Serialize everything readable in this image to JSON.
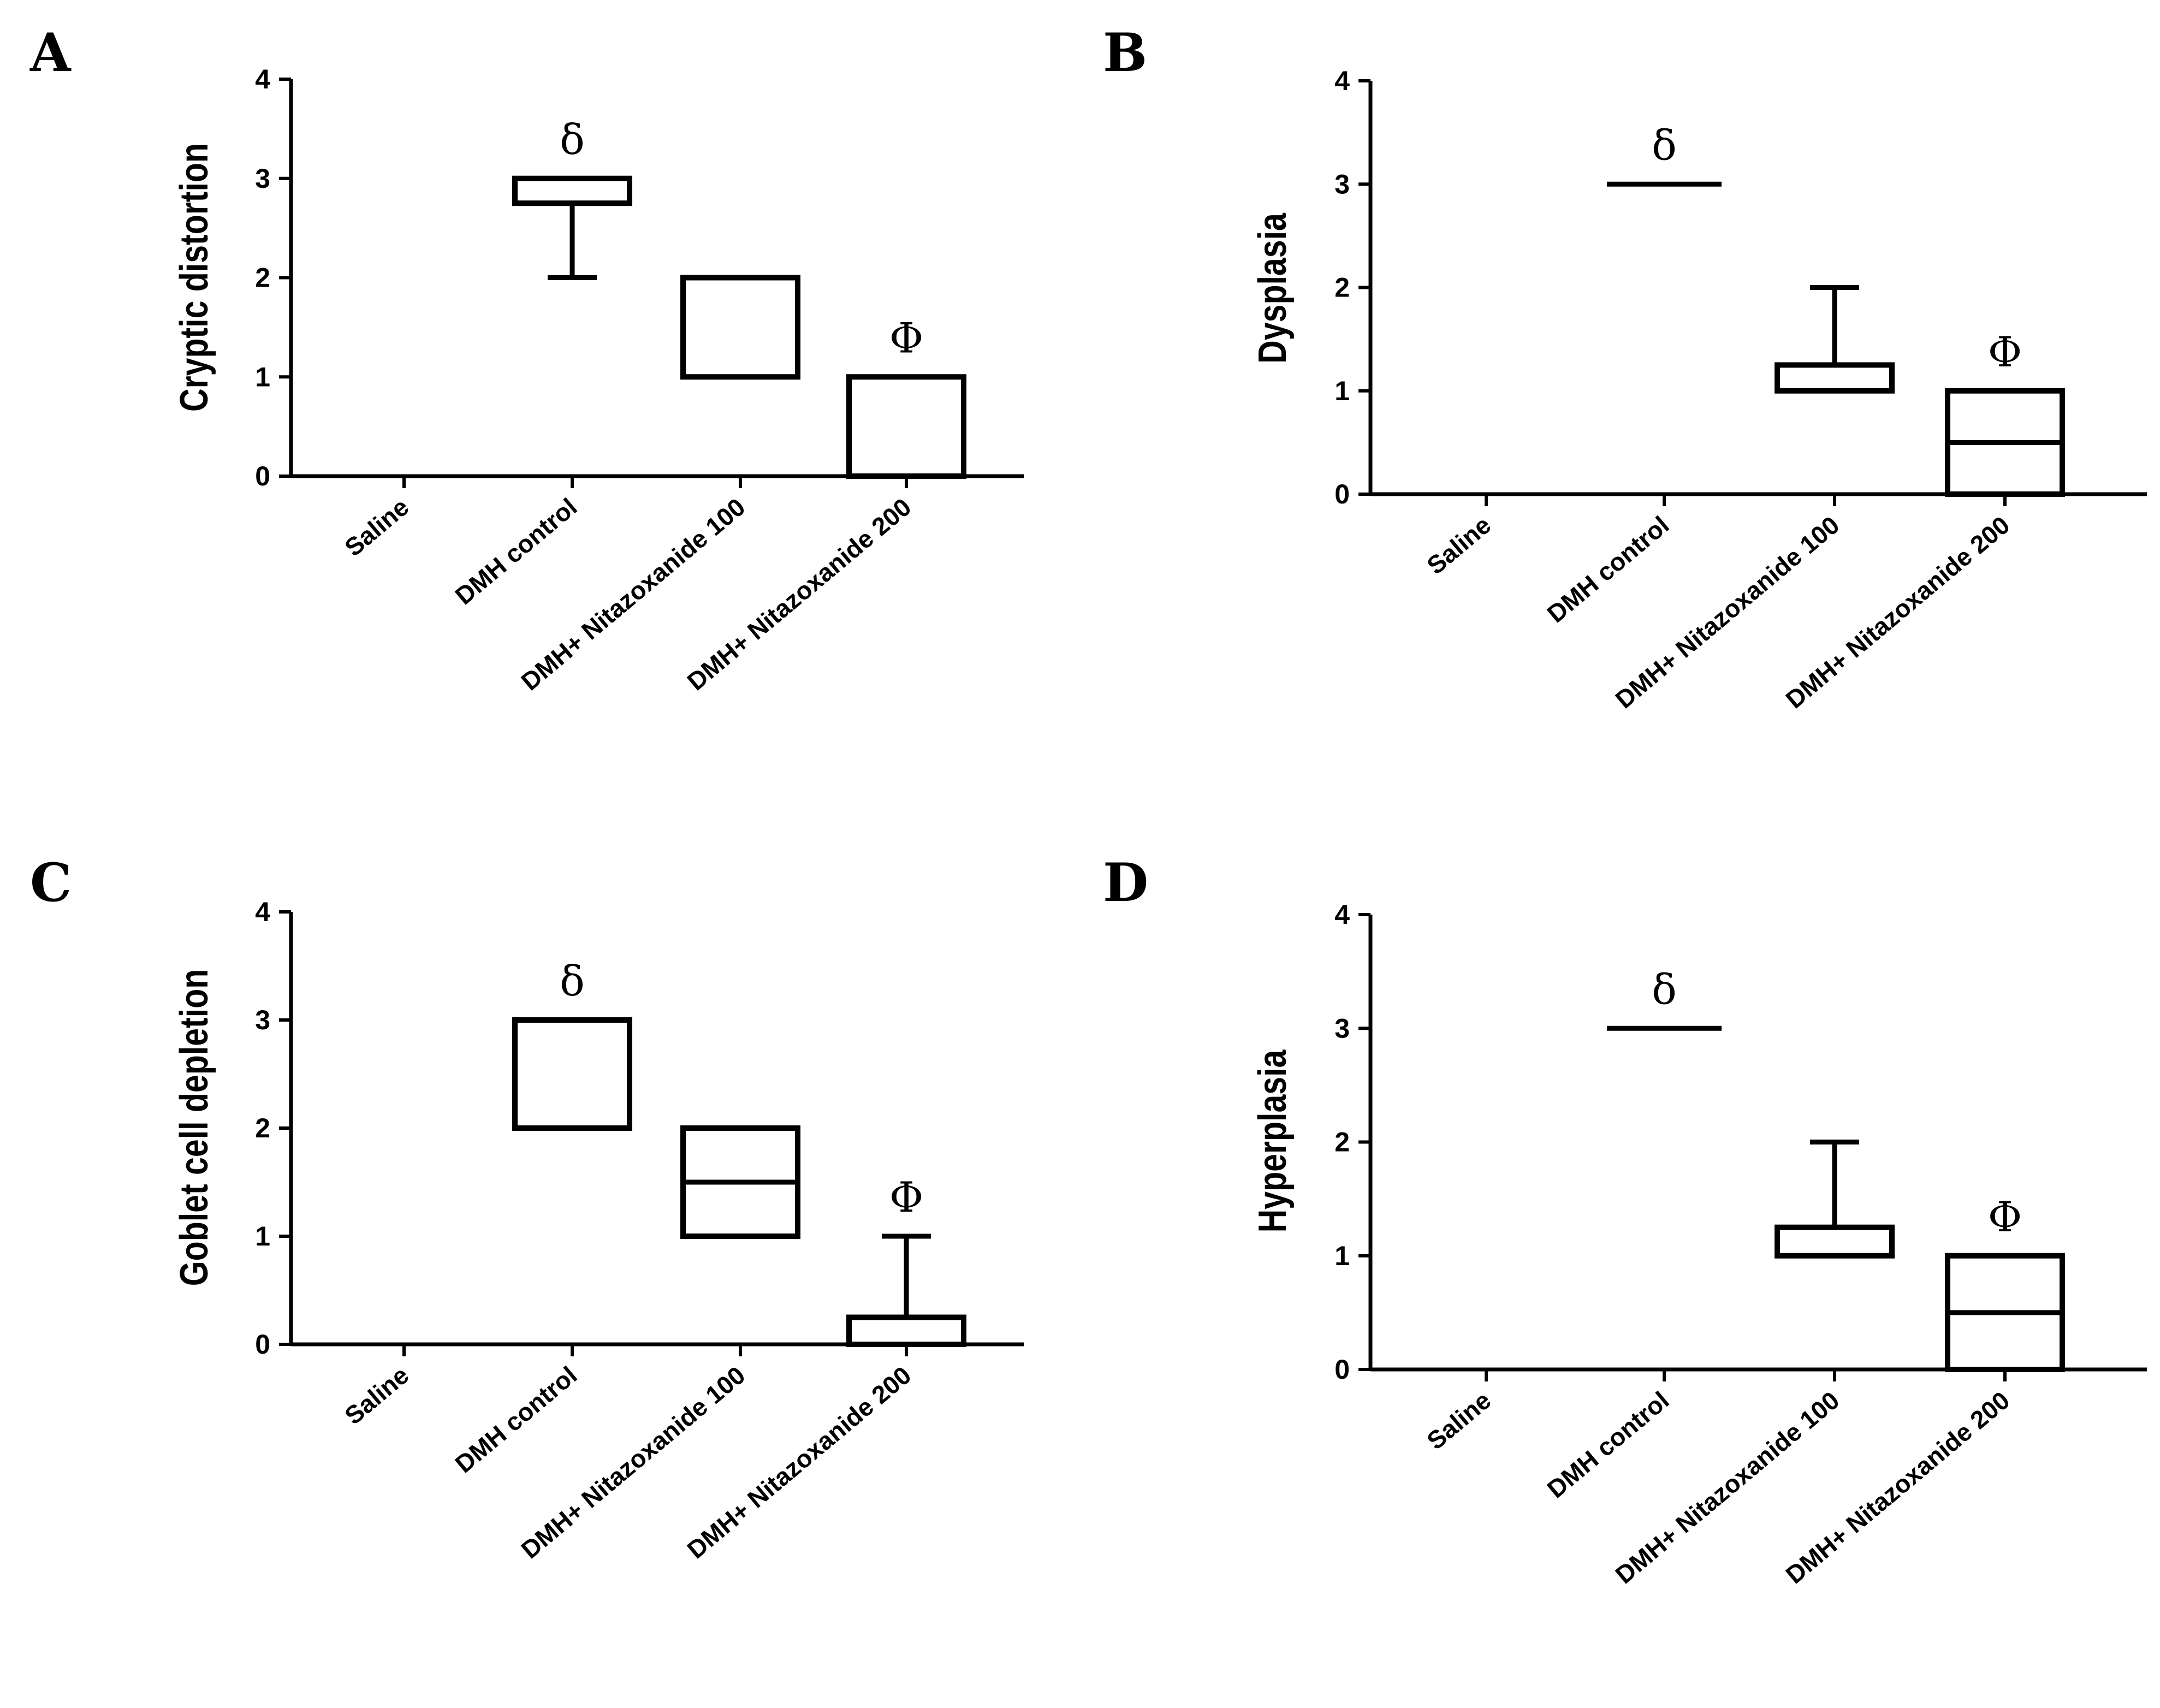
{
  "chart_data": [
    {
      "type": "box",
      "panel": "A",
      "ylabel": "Cryptic distortion",
      "ylim": [
        0,
        4
      ],
      "yticks": [
        "0",
        "1",
        "2",
        "3",
        "4"
      ],
      "categories": [
        "Saline",
        "DMH control",
        "DMH+ Nitazoxanide 100",
        "DMH+ Nitazoxanide 200"
      ],
      "boxes": [
        {
          "min": 0,
          "q1": 0,
          "median": 0,
          "q3": 0,
          "max": 0
        },
        {
          "min": 2,
          "q1": 2.75,
          "median": 3,
          "q3": 3,
          "max": 3
        },
        {
          "min": 1,
          "q1": 1,
          "median": 1,
          "q3": 2,
          "max": 2
        },
        {
          "min": 0,
          "q1": 0,
          "median": 1,
          "q3": 1,
          "max": 1
        }
      ],
      "significance": [
        "",
        "δ",
        "",
        "Φ"
      ]
    },
    {
      "type": "box",
      "panel": "B",
      "ylabel": "Dysplasia",
      "ylim": [
        0,
        4
      ],
      "yticks": [
        "0",
        "1",
        "2",
        "3",
        "4"
      ],
      "categories": [
        "Saline",
        "DMH control",
        "DMH+ Nitazoxanide 100",
        "DMH+ Nitazoxanide 200"
      ],
      "boxes": [
        {
          "min": 0,
          "q1": 0,
          "median": 0,
          "q3": 0,
          "max": 0
        },
        {
          "min": 3,
          "q1": 3,
          "median": 3,
          "q3": 3,
          "max": 3
        },
        {
          "min": 1,
          "q1": 1,
          "median": 1,
          "q3": 1.25,
          "max": 2
        },
        {
          "min": 0,
          "q1": 0,
          "median": 0.5,
          "q3": 1,
          "max": 1
        }
      ],
      "significance": [
        "",
        "δ",
        "",
        "Φ"
      ]
    },
    {
      "type": "box",
      "panel": "C",
      "ylabel": "Goblet cell depletion",
      "ylim": [
        0,
        4
      ],
      "yticks": [
        "0",
        "1",
        "2",
        "3",
        "4"
      ],
      "categories": [
        "Saline",
        "DMH control",
        "DMH+ Nitazoxanide 100",
        "DMH+ Nitazoxanide 200"
      ],
      "boxes": [
        {
          "min": 0,
          "q1": 0,
          "median": 0,
          "q3": 0,
          "max": 0
        },
        {
          "min": 2,
          "q1": 2,
          "median": 2,
          "q3": 3,
          "max": 3
        },
        {
          "min": 1,
          "q1": 1,
          "median": 1.5,
          "q3": 2,
          "max": 2
        },
        {
          "min": 0,
          "q1": 0,
          "median": 0,
          "q3": 0.25,
          "max": 1
        }
      ],
      "significance": [
        "",
        "δ",
        "",
        "Φ"
      ]
    },
    {
      "type": "box",
      "panel": "D",
      "ylabel": "Hyperplasia",
      "ylim": [
        0,
        4
      ],
      "yticks": [
        "0",
        "1",
        "2",
        "3",
        "4"
      ],
      "categories": [
        "Saline",
        "DMH control",
        "DMH+ Nitazoxanide 100",
        "DMH+ Nitazoxanide 200"
      ],
      "boxes": [
        {
          "min": 0,
          "q1": 0,
          "median": 0,
          "q3": 0,
          "max": 0
        },
        {
          "min": 3,
          "q1": 3,
          "median": 3,
          "q3": 3,
          "max": 3
        },
        {
          "min": 1,
          "q1": 1,
          "median": 1,
          "q3": 1.25,
          "max": 2
        },
        {
          "min": 0,
          "q1": 0,
          "median": 0.5,
          "q3": 1,
          "max": 1
        }
      ],
      "significance": [
        "",
        "δ",
        "",
        "Φ"
      ]
    }
  ]
}
